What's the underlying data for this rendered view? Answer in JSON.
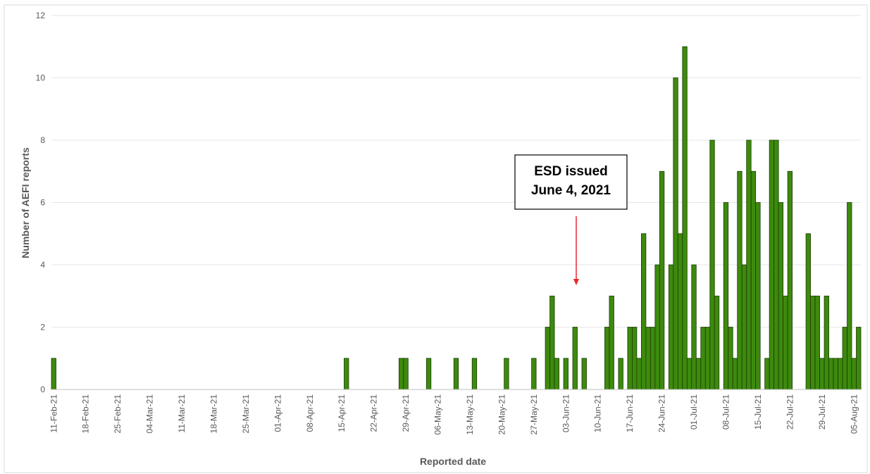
{
  "chart_data": {
    "type": "bar",
    "title": "",
    "xlabel": "Reported date",
    "ylabel": "Number of AEFI reports",
    "ylim": [
      0,
      12
    ],
    "yticks": [
      0,
      2,
      4,
      6,
      8,
      10,
      12
    ],
    "grid": true,
    "legend": "none",
    "x_tick_labels": [
      "11-Feb-21",
      "18-Feb-21",
      "25-Feb-21",
      "04-Mar-21",
      "11-Mar-21",
      "18-Mar-21",
      "25-Mar-21",
      "01-Apr-21",
      "08-Apr-21",
      "15-Apr-21",
      "22-Apr-21",
      "29-Apr-21",
      "06-May-21",
      "13-May-21",
      "20-May-21",
      "27-May-21",
      "03-Jun-21",
      "10-Jun-21",
      "17-Jun-21",
      "24-Jun-21",
      "01-Jul-21",
      "08-Jul-21",
      "15-Jul-21",
      "22-Jul-21",
      "29-Jul-21",
      "05-Aug-21"
    ],
    "x_start": "11-Feb-21",
    "x_end": "07-Aug-21",
    "values": [
      1,
      0,
      0,
      0,
      0,
      0,
      0,
      0,
      0,
      0,
      0,
      0,
      0,
      0,
      0,
      0,
      0,
      0,
      0,
      0,
      0,
      0,
      0,
      0,
      0,
      0,
      0,
      0,
      0,
      0,
      0,
      0,
      0,
      0,
      0,
      0,
      0,
      0,
      0,
      0,
      0,
      0,
      0,
      0,
      0,
      0,
      0,
      0,
      0,
      0,
      0,
      0,
      0,
      0,
      0,
      0,
      0,
      0,
      0,
      0,
      0,
      0,
      0,
      0,
      1,
      0,
      0,
      0,
      0,
      0,
      0,
      0,
      0,
      0,
      0,
      0,
      1,
      1,
      0,
      0,
      0,
      0,
      1,
      0,
      0,
      0,
      0,
      0,
      1,
      0,
      0,
      0,
      1,
      0,
      0,
      0,
      0,
      0,
      0,
      1,
      0,
      0,
      0,
      0,
      0,
      1,
      0,
      0,
      2,
      3,
      1,
      0,
      1,
      0,
      2,
      0,
      1,
      0,
      0,
      0,
      0,
      2,
      3,
      0,
      1,
      0,
      2,
      2,
      1,
      5,
      2,
      2,
      4,
      7,
      0,
      4,
      10,
      5,
      11,
      1,
      4,
      1,
      2,
      2,
      8,
      3,
      0,
      6,
      2,
      1,
      7,
      4,
      8,
      7,
      6,
      0,
      1,
      8,
      8,
      6,
      3,
      7,
      0,
      0,
      0,
      5,
      3,
      3,
      1,
      3,
      1,
      1,
      1,
      2,
      6,
      1,
      2
    ],
    "bar_color": "#3d8a0d",
    "bar_edge_color": "#1b3d05",
    "annotation": {
      "line1": "ESD issued",
      "line2": "June 4, 2021",
      "arrow_color": "#e8262b"
    }
  }
}
